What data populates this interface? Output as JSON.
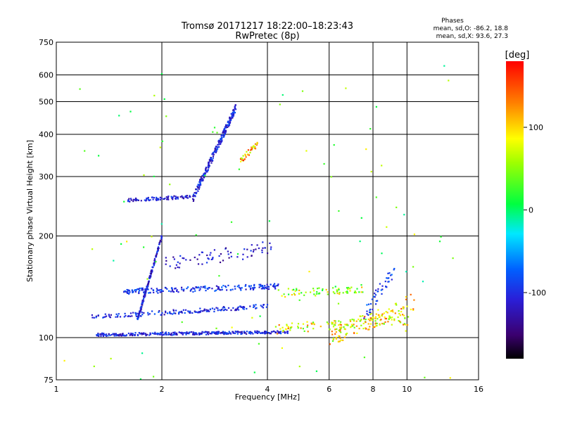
{
  "chart_data": {
    "type": "scatter",
    "title": "Tromsø 20171217 18:22:00–18:23:43",
    "subtitle": "RwPretec (8p)",
    "xlabel": "Frequency [MHz]",
    "ylabel": "Stationary phase Virtual Height [km]",
    "x_scale": "log",
    "y_scale": "log",
    "xlim": [
      1,
      16
    ],
    "ylim": [
      75,
      750
    ],
    "x_ticks": [
      1,
      2,
      4,
      6,
      8,
      10,
      16
    ],
    "y_ticks": [
      75,
      100,
      200,
      300,
      400,
      500,
      600,
      750
    ],
    "grid": true,
    "stats": {
      "heading": "Phases",
      "line_o": "mean, sd,O: -86.2, 18.8",
      "line_x": "mean, sd,X:  93.6, 27.3"
    },
    "colorbar": {
      "label": "[deg]",
      "ticks": [
        100,
        0,
        -100
      ],
      "range": [
        -180,
        180
      ]
    },
    "traces": [
      {
        "f0": 2.45,
        "f1": 3.25,
        "h0": 258,
        "h1": 480,
        "phase": -105,
        "count": 230,
        "spreadH": 0.025
      },
      {
        "f0": 1.6,
        "f1": 2.45,
        "h0": 255,
        "h1": 262,
        "phase": -110,
        "count": 80,
        "spreadH": 0.012
      },
      {
        "f0": 3.35,
        "f1": 3.75,
        "h0": 335,
        "h1": 375,
        "phase": 115,
        "count": 35,
        "spreadH": 0.02
      },
      {
        "f0": 1.3,
        "f1": 4.6,
        "h0": 102,
        "h1": 104,
        "phase": -105,
        "count": 320,
        "spreadH": 0.01
      },
      {
        "f0": 4.2,
        "f1": 10.2,
        "h0": 106,
        "h1": 113,
        "phase": 85,
        "count": 120,
        "spreadH": 0.035
      },
      {
        "f0": 1.25,
        "f1": 4.0,
        "h0": 115,
        "h1": 124,
        "phase": -100,
        "count": 160,
        "spreadH": 0.015
      },
      {
        "f0": 1.55,
        "f1": 4.3,
        "h0": 137,
        "h1": 142,
        "phase": -95,
        "count": 190,
        "spreadH": 0.018
      },
      {
        "f0": 4.3,
        "f1": 7.5,
        "h0": 135,
        "h1": 140,
        "phase": 60,
        "count": 70,
        "spreadH": 0.03
      },
      {
        "f0": 1.7,
        "f1": 2.0,
        "h0": 112,
        "h1": 200,
        "phase": -110,
        "count": 160,
        "spreadH": 0.015
      },
      {
        "f0": 2.05,
        "f1": 4.2,
        "h0": 165,
        "h1": 185,
        "phase": -115,
        "count": 70,
        "spreadH": 0.05
      },
      {
        "f0": 6.0,
        "f1": 10.5,
        "h0": 100,
        "h1": 128,
        "phase": 100,
        "count": 110,
        "spreadH": 0.06
      },
      {
        "f0": 7.5,
        "f1": 9.2,
        "h0": 115,
        "h1": 160,
        "phase": -90,
        "count": 45,
        "spreadH": 0.05
      },
      {
        "f0": 1.0,
        "f1": 14.0,
        "h0": 75,
        "h1": 650,
        "phase": 40,
        "count": 90,
        "spreadH": 0.9
      }
    ]
  }
}
